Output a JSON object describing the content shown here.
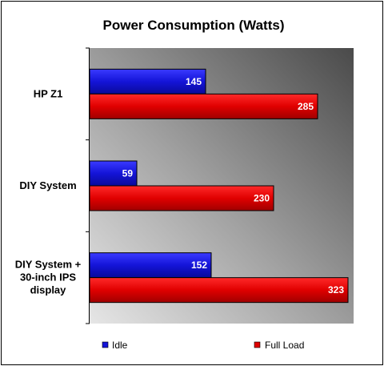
{
  "chart_data": {
    "type": "bar",
    "orientation": "horizontal",
    "title": "Power Consumption (Watts)",
    "categories": [
      [
        "HP Z1"
      ],
      [
        "DIY System"
      ],
      [
        "DIY System +",
        "30-inch IPS",
        "display"
      ]
    ],
    "series": [
      {
        "name": "Idle",
        "values": [
          145,
          59,
          152
        ],
        "color": "#1414d8"
      },
      {
        "name": "Full Load",
        "values": [
          285,
          230,
          323
        ],
        "color": "#e00000"
      }
    ],
    "xlim": [
      0,
      330
    ],
    "grid": false,
    "legend_placement": "bottom",
    "plot_background": "gradient-gray",
    "data_labels": true
  }
}
